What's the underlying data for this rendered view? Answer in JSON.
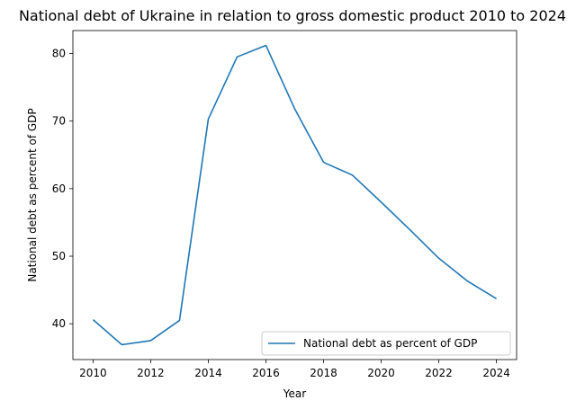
{
  "chart_data": {
    "type": "line",
    "title": "National debt of Ukraine in relation to gross domestic product 2010 to 2024",
    "xlabel": "Year",
    "ylabel": "National debt as percent of GDP",
    "x": [
      2010,
      2011,
      2012,
      2013,
      2014,
      2015,
      2016,
      2017,
      2018,
      2019,
      2020,
      2021,
      2022,
      2023,
      2024
    ],
    "series": [
      {
        "name": "National debt as percent of GDP",
        "values": [
          40.6,
          36.9,
          37.5,
          40.5,
          70.3,
          79.5,
          81.2,
          71.8,
          63.9,
          62.0,
          58.0,
          53.9,
          49.7,
          46.3,
          43.7
        ],
        "color": "#1f77b4"
      }
    ],
    "xlim": [
      2009.3,
      2024.7
    ],
    "ylim": [
      34.7,
      83.4
    ],
    "xticks": [
      "2010",
      "2012",
      "2014",
      "2016",
      "2018",
      "2020",
      "2022",
      "2024"
    ],
    "yticks": [
      "40",
      "50",
      "60",
      "70",
      "80"
    ],
    "grid": false,
    "legend_position": "lower right"
  }
}
